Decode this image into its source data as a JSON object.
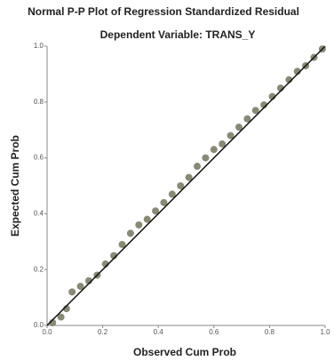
{
  "chart_data": {
    "type": "scatter",
    "title": "Normal P-P Plot of Regression Standardized Residual",
    "subtitle": "Dependent Variable: TRANS_Y",
    "x_label": "Observed Cum Prob",
    "y_label": "Expected Cum Prob",
    "x": [
      0.02,
      0.05,
      0.07,
      0.09,
      0.12,
      0.15,
      0.18,
      0.21,
      0.24,
      0.27,
      0.3,
      0.33,
      0.36,
      0.39,
      0.42,
      0.45,
      0.48,
      0.51,
      0.54,
      0.57,
      0.6,
      0.63,
      0.66,
      0.69,
      0.72,
      0.75,
      0.78,
      0.81,
      0.84,
      0.87,
      0.9,
      0.93,
      0.96,
      0.99
    ],
    "values": [
      0.01,
      0.03,
      0.06,
      0.12,
      0.14,
      0.16,
      0.18,
      0.22,
      0.25,
      0.29,
      0.33,
      0.36,
      0.38,
      0.41,
      0.44,
      0.47,
      0.5,
      0.53,
      0.57,
      0.6,
      0.63,
      0.65,
      0.68,
      0.71,
      0.74,
      0.77,
      0.79,
      0.82,
      0.85,
      0.88,
      0.91,
      0.93,
      0.96,
      0.99
    ],
    "color": "#74745c",
    "line_color": "#111111",
    "xlim": [
      0,
      1
    ],
    "ylim": [
      0,
      1
    ],
    "xticks": [
      {
        "value": 0,
        "label": "0.0"
      },
      {
        "value": 0.2,
        "label": "0.2"
      },
      {
        "value": 0.4,
        "label": "0.4"
      },
      {
        "value": 0.6,
        "label": "0.6"
      },
      {
        "value": 0.8,
        "label": "0.8"
      },
      {
        "value": 1,
        "label": "1.0"
      }
    ],
    "yticks": [
      {
        "value": 0,
        "label": "0.0"
      },
      {
        "value": 0.2,
        "label": "0.2"
      },
      {
        "value": 0.4,
        "label": "0.4"
      },
      {
        "value": 0.6,
        "label": "0.6"
      },
      {
        "value": 0.8,
        "label": "0.8"
      },
      {
        "value": 1,
        "label": "1.0"
      }
    ]
  }
}
